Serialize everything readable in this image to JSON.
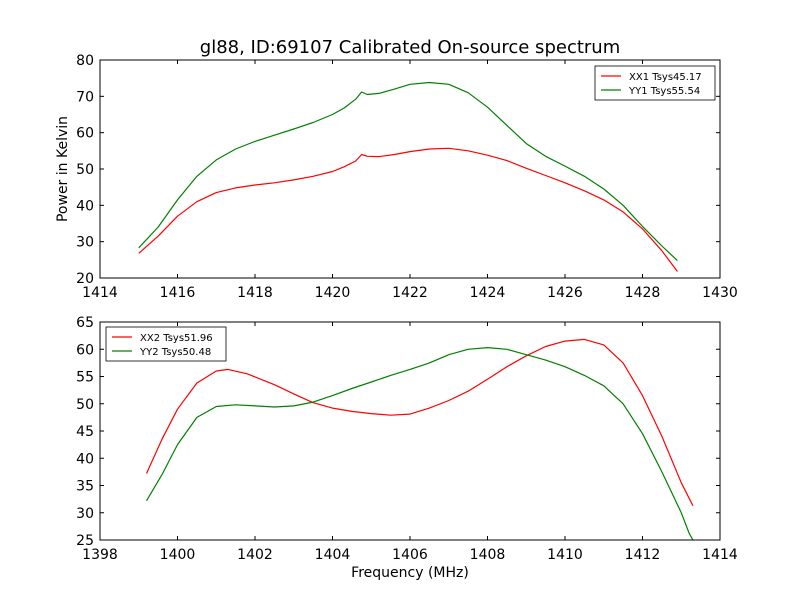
{
  "figure": {
    "title": "gl88, ID:69107 Calibrated On-source spectrum",
    "xlabel": "Frequency (MHz)"
  },
  "chart_data": [
    {
      "type": "line",
      "title": "gl88, ID:69107 Calibrated On-source spectrum",
      "xlabel": "",
      "ylabel": "Power in Kelvin",
      "xlim": [
        1414,
        1430
      ],
      "ylim": [
        20,
        80
      ],
      "xticks": [
        1414,
        1416,
        1418,
        1420,
        1422,
        1424,
        1426,
        1428,
        1430
      ],
      "yticks": [
        20,
        30,
        40,
        50,
        60,
        70,
        80
      ],
      "grid": false,
      "legend_position": "top-right",
      "series": [
        {
          "name": "XX1 Tsys45.17",
          "color": "#ff0000",
          "points": [
            [
              1415.0,
              26.8
            ],
            [
              1415.5,
              31.5
            ],
            [
              1416.0,
              37.0
            ],
            [
              1416.5,
              41.0
            ],
            [
              1417.0,
              43.5
            ],
            [
              1417.5,
              44.8
            ],
            [
              1418.0,
              45.6
            ],
            [
              1418.5,
              46.2
            ],
            [
              1419.0,
              47.0
            ],
            [
              1419.5,
              48.0
            ],
            [
              1420.0,
              49.3
            ],
            [
              1420.3,
              50.6
            ],
            [
              1420.6,
              52.2
            ],
            [
              1420.75,
              54.0
            ],
            [
              1420.9,
              53.5
            ],
            [
              1421.2,
              53.4
            ],
            [
              1421.6,
              54.0
            ],
            [
              1422.0,
              54.8
            ],
            [
              1422.5,
              55.5
            ],
            [
              1423.0,
              55.7
            ],
            [
              1423.5,
              55.0
            ],
            [
              1424.0,
              53.8
            ],
            [
              1424.5,
              52.3
            ],
            [
              1425.0,
              50.2
            ],
            [
              1425.5,
              48.2
            ],
            [
              1426.0,
              46.2
            ],
            [
              1426.5,
              44.0
            ],
            [
              1427.0,
              41.5
            ],
            [
              1427.5,
              38.2
            ],
            [
              1428.0,
              33.5
            ],
            [
              1428.5,
              27.5
            ],
            [
              1428.9,
              21.8
            ]
          ]
        },
        {
          "name": "YY1 Tsys55.54",
          "color": "#008000",
          "points": [
            [
              1415.0,
              28.3
            ],
            [
              1415.5,
              34.0
            ],
            [
              1416.0,
              41.5
            ],
            [
              1416.5,
              48.0
            ],
            [
              1417.0,
              52.5
            ],
            [
              1417.5,
              55.5
            ],
            [
              1418.0,
              57.6
            ],
            [
              1418.5,
              59.3
            ],
            [
              1419.0,
              61.0
            ],
            [
              1419.5,
              62.8
            ],
            [
              1420.0,
              65.0
            ],
            [
              1420.3,
              66.8
            ],
            [
              1420.6,
              69.2
            ],
            [
              1420.75,
              71.2
            ],
            [
              1420.9,
              70.5
            ],
            [
              1421.2,
              70.8
            ],
            [
              1421.6,
              72.0
            ],
            [
              1422.0,
              73.3
            ],
            [
              1422.5,
              73.8
            ],
            [
              1423.0,
              73.3
            ],
            [
              1423.5,
              71.0
            ],
            [
              1424.0,
              67.0
            ],
            [
              1424.5,
              62.0
            ],
            [
              1425.0,
              57.0
            ],
            [
              1425.5,
              53.5
            ],
            [
              1426.0,
              50.8
            ],
            [
              1426.5,
              48.0
            ],
            [
              1427.0,
              44.5
            ],
            [
              1427.5,
              40.0
            ],
            [
              1428.0,
              34.2
            ],
            [
              1428.5,
              28.8
            ],
            [
              1428.9,
              24.8
            ]
          ]
        }
      ]
    },
    {
      "type": "line",
      "title": "",
      "xlabel": "Frequency (MHz)",
      "ylabel": "",
      "xlim": [
        1398,
        1414
      ],
      "ylim": [
        25,
        65
      ],
      "xticks": [
        1398,
        1400,
        1402,
        1404,
        1406,
        1408,
        1410,
        1412,
        1414
      ],
      "yticks": [
        25,
        30,
        35,
        40,
        45,
        50,
        55,
        60,
        65
      ],
      "grid": false,
      "legend_position": "top-left",
      "series": [
        {
          "name": "XX2 Tsys51.96",
          "color": "#ff0000",
          "points": [
            [
              1399.2,
              37.2
            ],
            [
              1399.6,
              43.5
            ],
            [
              1400.0,
              49.0
            ],
            [
              1400.5,
              53.8
            ],
            [
              1401.0,
              56.0
            ],
            [
              1401.3,
              56.3
            ],
            [
              1401.8,
              55.5
            ],
            [
              1402.5,
              53.5
            ],
            [
              1403.0,
              51.8
            ],
            [
              1403.5,
              50.2
            ],
            [
              1404.0,
              49.2
            ],
            [
              1404.5,
              48.6
            ],
            [
              1405.0,
              48.2
            ],
            [
              1405.5,
              47.9
            ],
            [
              1406.0,
              48.1
            ],
            [
              1406.5,
              49.2
            ],
            [
              1407.0,
              50.6
            ],
            [
              1407.5,
              52.3
            ],
            [
              1408.0,
              54.5
            ],
            [
              1408.5,
              56.8
            ],
            [
              1409.0,
              58.8
            ],
            [
              1409.5,
              60.5
            ],
            [
              1410.0,
              61.5
            ],
            [
              1410.5,
              61.8
            ],
            [
              1411.0,
              60.8
            ],
            [
              1411.5,
              57.5
            ],
            [
              1412.0,
              51.5
            ],
            [
              1412.5,
              44.0
            ],
            [
              1413.0,
              35.5
            ],
            [
              1413.3,
              31.3
            ]
          ]
        },
        {
          "name": "YY2 Tsys50.48",
          "color": "#008000",
          "points": [
            [
              1399.2,
              32.2
            ],
            [
              1399.6,
              37.0
            ],
            [
              1400.0,
              42.5
            ],
            [
              1400.5,
              47.5
            ],
            [
              1401.0,
              49.5
            ],
            [
              1401.5,
              49.8
            ],
            [
              1402.0,
              49.6
            ],
            [
              1402.5,
              49.4
            ],
            [
              1403.0,
              49.6
            ],
            [
              1403.5,
              50.3
            ],
            [
              1404.0,
              51.5
            ],
            [
              1404.5,
              52.8
            ],
            [
              1405.0,
              54.0
            ],
            [
              1405.5,
              55.2
            ],
            [
              1406.0,
              56.3
            ],
            [
              1406.5,
              57.5
            ],
            [
              1407.0,
              59.0
            ],
            [
              1407.5,
              60.0
            ],
            [
              1408.0,
              60.3
            ],
            [
              1408.5,
              60.0
            ],
            [
              1409.0,
              59.0
            ],
            [
              1409.5,
              58.0
            ],
            [
              1410.0,
              56.8
            ],
            [
              1410.5,
              55.2
            ],
            [
              1411.0,
              53.3
            ],
            [
              1411.5,
              50.0
            ],
            [
              1412.0,
              44.5
            ],
            [
              1412.5,
              37.5
            ],
            [
              1413.0,
              30.0
            ],
            [
              1413.2,
              26.3
            ],
            [
              1413.3,
              25.0
            ]
          ]
        }
      ]
    }
  ]
}
